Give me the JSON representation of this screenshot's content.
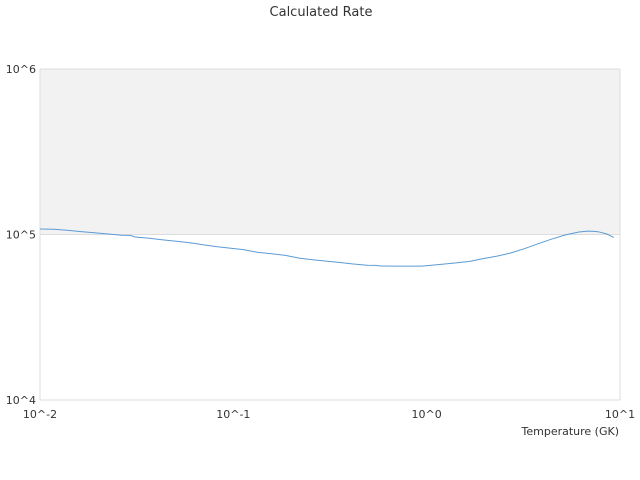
{
  "chart_data": {
    "type": "line",
    "title": "Calculated Rate",
    "xlabel": "Temperature (GK)",
    "ylabel": "",
    "xscale": "log",
    "yscale": "log",
    "xlim": [
      0.01,
      10
    ],
    "ylim": [
      10000,
      1000000
    ],
    "grid": true,
    "legend": "none",
    "x_ticks": [
      {
        "value": 0.01,
        "label": "10^-2"
      },
      {
        "value": 0.1,
        "label": "10^-1"
      },
      {
        "value": 1,
        "label": "10^0"
      },
      {
        "value": 10,
        "label": "10^1"
      }
    ],
    "y_ticks": [
      {
        "value": 10000,
        "label": "10^4"
      },
      {
        "value": 100000,
        "label": "10^5"
      },
      {
        "value": 1000000,
        "label": "10^6"
      }
    ],
    "colors": {
      "line": "#5b9bd5",
      "band": "#f2f2f2",
      "grid": "#dddddd",
      "text": "#333333"
    },
    "band": {
      "y_from": 100000,
      "y_to": 1000000
    },
    "series": [
      {
        "x": [
          0.01,
          0.0118,
          0.0138,
          0.0163,
          0.0191,
          0.0225,
          0.0265,
          0.0292,
          0.0312,
          0.0367,
          0.0432,
          0.0508,
          0.0597,
          0.0702,
          0.0826,
          0.0971,
          0.114,
          0.134,
          0.158,
          0.186,
          0.219,
          0.257,
          0.302,
          0.356,
          0.418,
          0.492,
          0.545,
          0.579,
          0.681,
          0.801,
          0.942,
          1.06,
          1.2,
          1.42,
          1.67,
          1.96,
          2.31,
          2.72,
          3.2,
          3.76,
          4.42,
          5.2,
          6.12,
          6.81,
          7.2,
          7.7,
          8.5,
          9.3
        ],
        "y": [
          108000,
          107700,
          106100,
          104100,
          102500,
          100700,
          98900,
          98700,
          96600,
          94800,
          92800,
          91000,
          89100,
          86500,
          84300,
          82700,
          80800,
          78000,
          76600,
          74800,
          72000,
          70400,
          69100,
          67700,
          66300,
          65200,
          65100,
          64500,
          64400,
          64400,
          64400,
          65200,
          66100,
          67400,
          68800,
          71500,
          74000,
          77300,
          82100,
          87900,
          93700,
          99300,
          103600,
          104800,
          104700,
          104000,
          100900,
          96000
        ]
      }
    ]
  }
}
